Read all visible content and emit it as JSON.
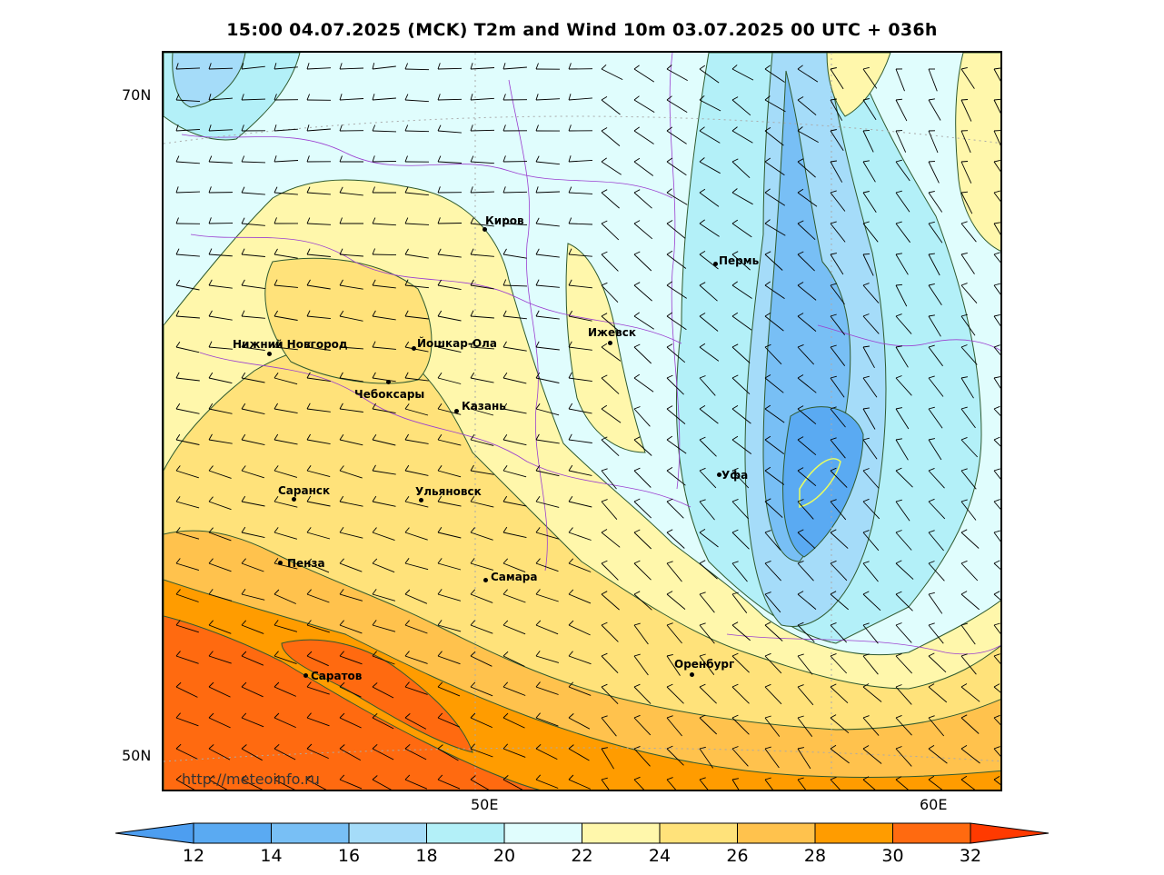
{
  "title": "15:00 04.07.2025 (MCK) T2m and Wind 10m 03.07.2025 00 UTC + 036h",
  "lat_labels": [
    "70N",
    "50N"
  ],
  "lon_labels": [
    "50E",
    "60E"
  ],
  "watermark": "http://meteoinfo.ru",
  "cities": [
    {
      "name": "Киров"
    },
    {
      "name": "Пермь"
    },
    {
      "name": "Ижевск"
    },
    {
      "name": "Нижний Новгород"
    },
    {
      "name": "Йошкар-Ола"
    },
    {
      "name": "Чебоксары"
    },
    {
      "name": "Казань"
    },
    {
      "name": "Уфа"
    },
    {
      "name": "Саранск"
    },
    {
      "name": "Ульяновск"
    },
    {
      "name": "Пенза"
    },
    {
      "name": "Самара"
    },
    {
      "name": "Оренбург"
    },
    {
      "name": "Саратов"
    }
  ],
  "colorbar": {
    "labels": [
      "12",
      "14",
      "16",
      "18",
      "20",
      "22",
      "24",
      "26",
      "28",
      "30",
      "32"
    ],
    "colors": [
      "#4d9ef0",
      "#5aaaf2",
      "#78bff5",
      "#a5dcf9",
      "#b3f0f8",
      "#e0fdfd",
      "#fff7ab",
      "#ffe27a",
      "#ffc24d",
      "#ff9c00",
      "#ff6a10",
      "#ff3a00"
    ]
  },
  "legend_colors": {
    "t12_14": "#5aaaf2",
    "t14_16": "#78bff5",
    "t16_18": "#a5dcf9",
    "t18_20": "#b3f0f8",
    "t20_22": "#e0fdfd",
    "t22_24": "#fff7ab",
    "t24_26": "#ffe27a",
    "t26_28": "#ffc24d",
    "t28_30": "#ff9c00",
    "t30_32": "#ff6a10",
    "t32_plus": "#ff3a00"
  }
}
